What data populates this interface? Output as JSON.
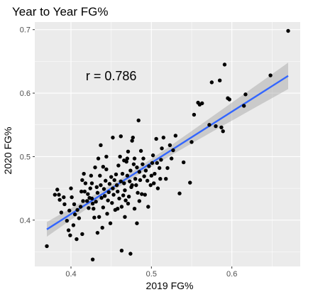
{
  "chart_data": {
    "type": "scatter",
    "title": "Year to Year FG%",
    "xlabel": "2019 FG%",
    "ylabel": "2020 FG%",
    "xlim": [
      0.355,
      0.685
    ],
    "ylim": [
      0.327,
      0.712
    ],
    "x_ticks": [
      0.4,
      0.5,
      0.6
    ],
    "x_tick_labels": [
      "0.4",
      "0.5",
      "0.6"
    ],
    "y_ticks": [
      0.4,
      0.5,
      0.6,
      0.7
    ],
    "y_tick_labels": [
      "0.4",
      "0.5",
      "0.6",
      "0.7"
    ],
    "grid": true,
    "annotation": {
      "text": "r = 0.786",
      "x": 0.45,
      "y": 0.627
    },
    "regression": {
      "x_range": [
        0.37,
        0.67
      ],
      "slope": 0.806,
      "intercept": 0.0872
    },
    "points": [
      [
        0.37,
        0.359
      ],
      [
        0.388,
        0.412
      ],
      [
        0.385,
        0.44
      ],
      [
        0.383,
        0.448
      ],
      [
        0.386,
        0.432
      ],
      [
        0.391,
        0.436
      ],
      [
        0.395,
        0.399
      ],
      [
        0.397,
        0.384
      ],
      [
        0.399,
        0.376
      ],
      [
        0.401,
        0.436
      ],
      [
        0.404,
        0.425
      ],
      [
        0.4,
        0.45
      ],
      [
        0.405,
        0.409
      ],
      [
        0.408,
        0.416
      ],
      [
        0.412,
        0.421
      ],
      [
        0.407,
        0.37
      ],
      [
        0.413,
        0.445
      ],
      [
        0.415,
        0.43
      ],
      [
        0.414,
        0.463
      ],
      [
        0.416,
        0.473
      ],
      [
        0.42,
        0.43
      ],
      [
        0.418,
        0.458
      ],
      [
        0.422,
        0.419
      ],
      [
        0.423,
        0.435
      ],
      [
        0.424,
        0.45
      ],
      [
        0.426,
        0.458
      ],
      [
        0.425,
        0.47
      ],
      [
        0.427,
        0.426
      ],
      [
        0.428,
        0.418
      ],
      [
        0.429,
        0.404
      ],
      [
        0.431,
        0.429
      ],
      [
        0.43,
        0.483
      ],
      [
        0.433,
        0.443
      ],
      [
        0.434,
        0.497
      ],
      [
        0.436,
        0.47
      ],
      [
        0.437,
        0.455
      ],
      [
        0.438,
        0.435
      ],
      [
        0.44,
        0.42
      ],
      [
        0.441,
        0.449
      ],
      [
        0.443,
        0.462
      ],
      [
        0.444,
        0.48
      ],
      [
        0.445,
        0.41
      ],
      [
        0.446,
        0.431
      ],
      [
        0.447,
        0.444
      ],
      [
        0.448,
        0.457
      ],
      [
        0.45,
        0.468
      ],
      [
        0.451,
        0.427
      ],
      [
        0.452,
        0.45
      ],
      [
        0.453,
        0.44
      ],
      [
        0.455,
        0.416
      ],
      [
        0.456,
        0.472
      ],
      [
        0.457,
        0.455
      ],
      [
        0.458,
        0.445
      ],
      [
        0.459,
        0.486
      ],
      [
        0.46,
        0.434
      ],
      [
        0.461,
        0.5
      ],
      [
        0.462,
        0.461
      ],
      [
        0.463,
        0.421
      ],
      [
        0.464,
        0.473
      ],
      [
        0.465,
        0.439
      ],
      [
        0.466,
        0.458
      ],
      [
        0.467,
        0.447
      ],
      [
        0.468,
        0.431
      ],
      [
        0.469,
        0.492
      ],
      [
        0.47,
        0.47
      ],
      [
        0.471,
        0.508
      ],
      [
        0.472,
        0.437
      ],
      [
        0.473,
        0.461
      ],
      [
        0.474,
        0.478
      ],
      [
        0.475,
        0.452
      ],
      [
        0.476,
        0.525
      ],
      [
        0.477,
        0.53
      ],
      [
        0.478,
        0.488
      ],
      [
        0.479,
        0.497
      ],
      [
        0.48,
        0.465
      ],
      [
        0.481,
        0.455
      ],
      [
        0.482,
        0.483
      ],
      [
        0.483,
        0.443
      ],
      [
        0.484,
        0.557
      ],
      [
        0.485,
        0.476
      ],
      [
        0.486,
        0.463
      ],
      [
        0.488,
        0.441
      ],
      [
        0.489,
        0.488
      ],
      [
        0.49,
        0.497
      ],
      [
        0.491,
        0.469
      ],
      [
        0.493,
        0.478
      ],
      [
        0.495,
        0.462
      ],
      [
        0.497,
        0.485
      ],
      [
        0.499,
        0.455
      ],
      [
        0.501,
        0.49
      ],
      [
        0.502,
        0.502
      ],
      [
        0.504,
        0.473
      ],
      [
        0.506,
        0.528
      ],
      [
        0.508,
        0.45
      ],
      [
        0.51,
        0.482
      ],
      [
        0.512,
        0.495
      ],
      [
        0.513,
        0.513
      ],
      [
        0.515,
        0.53
      ],
      [
        0.518,
        0.465
      ],
      [
        0.52,
        0.482
      ],
      [
        0.523,
        0.518
      ],
      [
        0.525,
        0.497
      ],
      [
        0.527,
        0.51
      ],
      [
        0.53,
        0.533
      ],
      [
        0.535,
        0.442
      ],
      [
        0.54,
        0.491
      ],
      [
        0.548,
        0.459
      ],
      [
        0.55,
        0.523
      ],
      [
        0.553,
        0.566
      ],
      [
        0.558,
        0.585
      ],
      [
        0.56,
        0.582
      ],
      [
        0.563,
        0.584
      ],
      [
        0.572,
        0.55
      ],
      [
        0.575,
        0.617
      ],
      [
        0.58,
        0.548
      ],
      [
        0.585,
        0.62
      ],
      [
        0.587,
        0.546
      ],
      [
        0.589,
        0.54
      ],
      [
        0.591,
        0.645
      ],
      [
        0.595,
        0.592
      ],
      [
        0.597,
        0.59
      ],
      [
        0.615,
        0.58
      ],
      [
        0.617,
        0.598
      ],
      [
        0.648,
        0.628
      ],
      [
        0.67,
        0.698
      ],
      [
        0.38,
        0.44
      ],
      [
        0.392,
        0.425
      ],
      [
        0.398,
        0.415
      ],
      [
        0.403,
        0.392
      ],
      [
        0.41,
        0.403
      ],
      [
        0.417,
        0.445
      ],
      [
        0.421,
        0.441
      ],
      [
        0.426,
        0.434
      ],
      [
        0.432,
        0.452
      ],
      [
        0.435,
        0.405
      ],
      [
        0.439,
        0.388
      ],
      [
        0.442,
        0.438
      ],
      [
        0.449,
        0.395
      ],
      [
        0.454,
        0.463
      ],
      [
        0.458,
        0.418
      ],
      [
        0.463,
        0.352
      ],
      [
        0.467,
        0.405
      ],
      [
        0.471,
        0.426
      ],
      [
        0.474,
        0.347
      ],
      [
        0.476,
        0.455
      ],
      [
        0.479,
        0.418
      ],
      [
        0.482,
        0.395
      ],
      [
        0.485,
        0.43
      ],
      [
        0.487,
        0.509
      ],
      [
        0.492,
        0.44
      ],
      [
        0.496,
        0.421
      ],
      [
        0.5,
        0.47
      ],
      [
        0.503,
        0.458
      ],
      [
        0.507,
        0.49
      ],
      [
        0.511,
        0.465
      ],
      [
        0.427,
        0.338
      ],
      [
        0.433,
        0.38
      ],
      [
        0.414,
        0.378
      ],
      [
        0.44,
        0.484
      ],
      [
        0.444,
        0.5
      ],
      [
        0.437,
        0.518
      ],
      [
        0.452,
        0.53
      ],
      [
        0.462,
        0.532
      ],
      [
        0.47,
        0.497
      ],
      [
        0.466,
        0.494
      ]
    ]
  }
}
